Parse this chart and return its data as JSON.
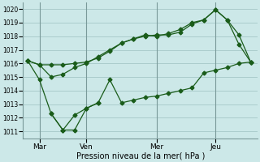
{
  "xlabel": "Pression niveau de la mer( hPa )",
  "bg_color": "#cce8e8",
  "grid_color": "#aacccc",
  "line_color": "#1a5c1a",
  "marker": "D",
  "markersize": 2.5,
  "linewidth": 0.9,
  "ylim": [
    1010.5,
    1020.5
  ],
  "yticks": [
    1011,
    1012,
    1013,
    1014,
    1015,
    1016,
    1017,
    1018,
    1019,
    1020
  ],
  "xtick_labels": [
    "Mar",
    "Ven",
    "Mer",
    "Jeu"
  ],
  "xtick_positions": [
    0.5,
    2.5,
    5.5,
    8.0
  ],
  "vline_positions": [
    0.5,
    2.5,
    5.5,
    8.0
  ],
  "xlim": [
    -0.2,
    9.8
  ],
  "series": [
    {
      "x": [
        0.0,
        0.5,
        1.0,
        1.5,
        2.0,
        2.5,
        3.0,
        3.5,
        4.0,
        4.5,
        5.0,
        5.5,
        6.0,
        6.5,
        7.0,
        7.5,
        8.0,
        8.5,
        9.0,
        9.5
      ],
      "y": [
        1016.2,
        1015.9,
        1015.9,
        1015.9,
        1016.0,
        1016.1,
        1016.4,
        1016.9,
        1017.5,
        1017.8,
        1018.0,
        1018.1,
        1018.1,
        1018.3,
        1018.9,
        1019.2,
        1019.95,
        1019.2,
        1018.1,
        1016.1
      ]
    },
    {
      "x": [
        0.0,
        0.5,
        1.0,
        1.5,
        2.0,
        2.5,
        3.0,
        3.5,
        4.0,
        4.5,
        5.0,
        5.5,
        6.0,
        6.5,
        7.0,
        7.5,
        8.0,
        8.5,
        9.0,
        9.5
      ],
      "y": [
        1016.2,
        1015.9,
        1015.0,
        1015.2,
        1015.7,
        1016.0,
        1016.5,
        1017.0,
        1017.5,
        1017.8,
        1018.1,
        1018.0,
        1018.2,
        1018.5,
        1019.0,
        1019.2,
        1019.95,
        1019.2,
        1017.4,
        1016.1
      ]
    },
    {
      "x": [
        0.0,
        0.5,
        1.0,
        1.5,
        2.0,
        2.5,
        3.0,
        3.5,
        4.0,
        4.5,
        5.0,
        5.5,
        6.0,
        6.5,
        7.0,
        7.5,
        8.0,
        8.5,
        9.0,
        9.5
      ],
      "y": [
        1016.2,
        1014.8,
        1012.3,
        1011.1,
        1012.2,
        1012.7,
        1013.1,
        1014.8,
        1013.1,
        1013.3,
        1013.5,
        1013.6,
        1013.8,
        1014.0,
        1014.2,
        1015.3,
        1015.5,
        1015.7,
        1016.0,
        1016.1
      ]
    },
    {
      "x": [
        1.0,
        1.5,
        2.0,
        2.5,
        3.0
      ],
      "y": [
        1012.3,
        1011.1,
        1011.1,
        1012.7,
        1013.1
      ]
    }
  ]
}
